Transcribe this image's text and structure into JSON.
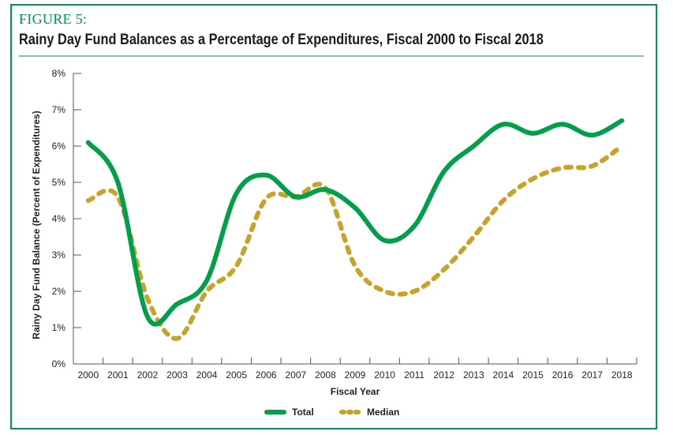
{
  "figure_label": "FIGURE 5:",
  "colors": {
    "frame": "#00984a",
    "total": "#00a04a",
    "median": "#c9a227",
    "axis": "#555555"
  },
  "chart_data": {
    "type": "line",
    "title": "Rainy Day Fund Balances as a Percentage of Expenditures,  Fiscal 2000 to Fiscal 2018",
    "xlabel": "Fiscal Year",
    "ylabel": "Rainy Day Fund  Balance (Percent of Expenditures)",
    "x": [
      "2000",
      "2001",
      "2002",
      "2003",
      "2004",
      "2005",
      "2006",
      "2007",
      "2008",
      "2009",
      "2010",
      "2011",
      "2012",
      "2013",
      "2014",
      "2015",
      "2016",
      "2017",
      "2018"
    ],
    "yticks": [
      "0%",
      "1%",
      "2%",
      "3%",
      "4%",
      "5%",
      "6%",
      "7%",
      "8%"
    ],
    "ylim": [
      0,
      8
    ],
    "grid": false,
    "legend_position": "bottom-center",
    "series": [
      {
        "name": "Total",
        "style": "solid",
        "values": [
          6.1,
          5.0,
          1.3,
          1.65,
          2.3,
          4.7,
          5.2,
          4.6,
          4.8,
          4.3,
          3.4,
          3.8,
          5.3,
          6.0,
          6.6,
          6.35,
          6.6,
          6.3,
          6.7
        ]
      },
      {
        "name": "Median",
        "style": "dashed",
        "values": [
          4.5,
          4.6,
          1.8,
          0.7,
          2.0,
          2.7,
          4.55,
          4.6,
          4.85,
          2.7,
          2.0,
          2.0,
          2.6,
          3.5,
          4.5,
          5.1,
          5.4,
          5.45,
          6.0
        ]
      }
    ]
  }
}
